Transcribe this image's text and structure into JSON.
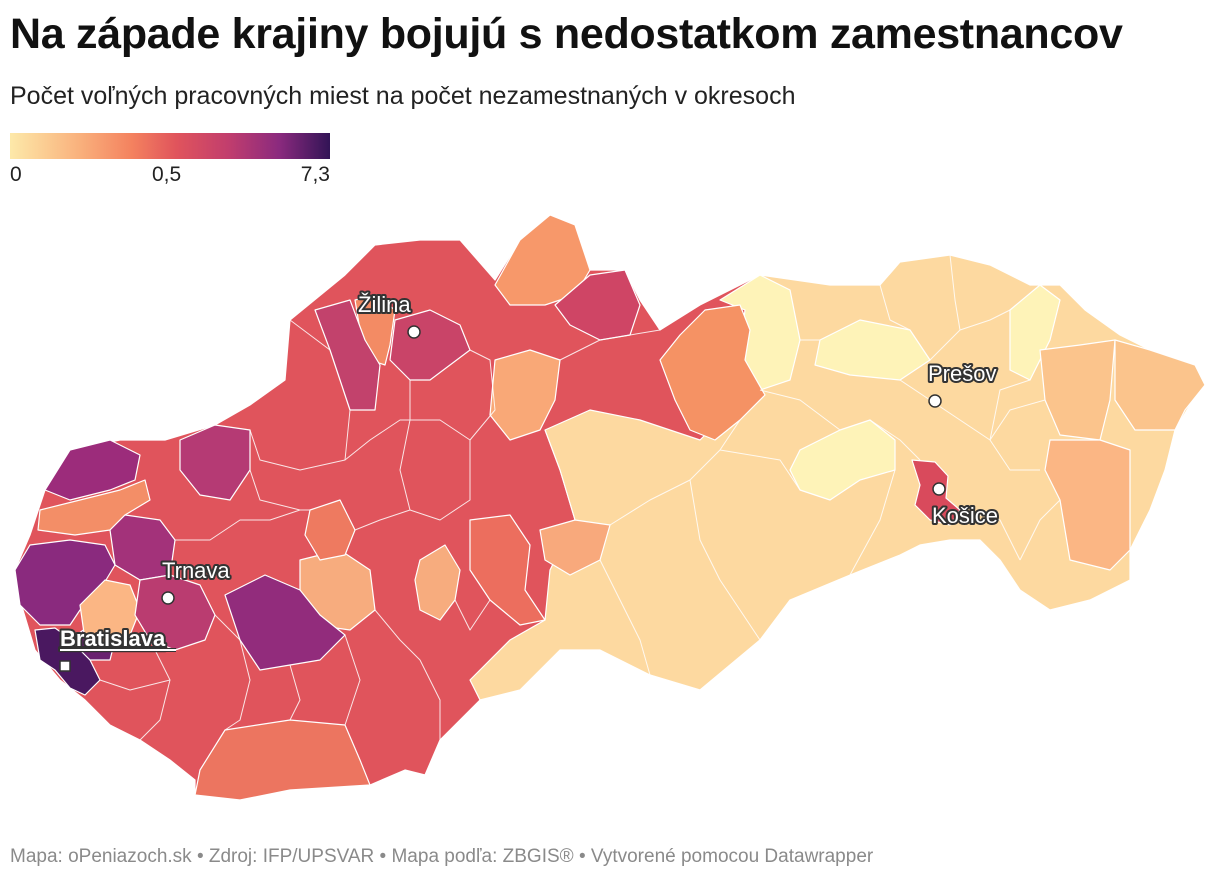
{
  "title": "Na západe krajiny bojujú s nedostatkom zamestnancov",
  "subtitle": "Počet voľných pracovných miest na počet nezamestnaných v okresoch",
  "legend": {
    "min_label": "0",
    "mid_label": "0,5",
    "max_label": "7,3",
    "colors": [
      "#fde9a9",
      "#f9b07c",
      "#f4825f",
      "#e0545c",
      "#c23e6d",
      "#8b2a7e",
      "#321456"
    ]
  },
  "cities": [
    {
      "name": "Žilina",
      "capital": false
    },
    {
      "name": "Prešov",
      "capital": false
    },
    {
      "name": "Košice",
      "capital": false
    },
    {
      "name": "Trnava",
      "capital": false
    },
    {
      "name": "Bratislava",
      "capital": true
    }
  ],
  "footer": "Mapa: oPeniazoch.sk • Zdroj: IFP/UPSVAR • Mapa podľa: ZBGIS® • Vytvorené pomocou Datawrapper"
}
